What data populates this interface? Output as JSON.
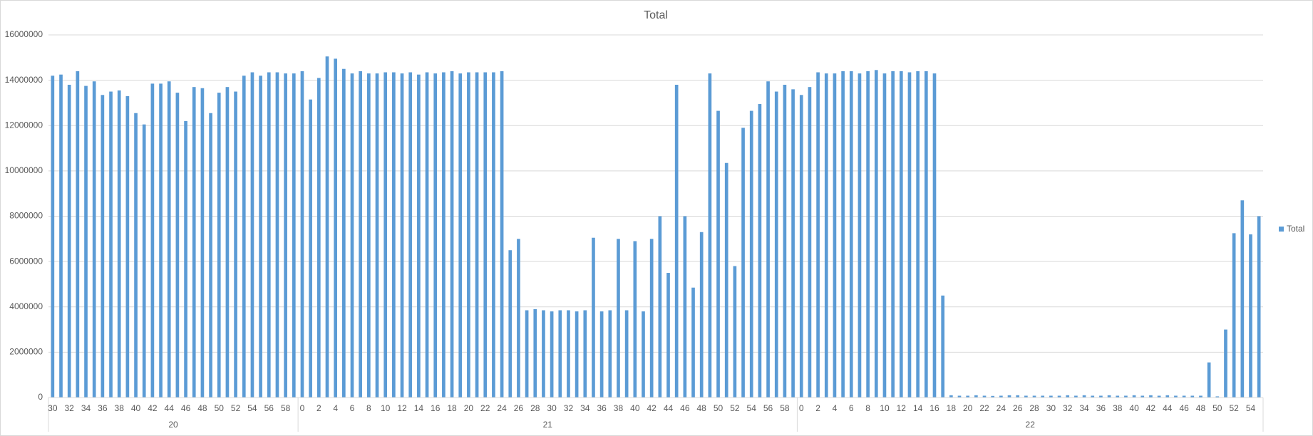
{
  "chart_data": {
    "type": "bar",
    "title": "Total",
    "category_groups": [
      {
        "label": "20",
        "categories": [
          "30",
          null,
          "32",
          null,
          "34",
          null,
          "36",
          null,
          "38",
          null,
          "40",
          null,
          "42",
          null,
          "44",
          null,
          "46",
          null,
          "48",
          null,
          "50",
          null,
          "52",
          null,
          "54",
          null,
          "56",
          null,
          "58",
          null
        ]
      },
      {
        "label": "21",
        "categories": [
          "0",
          null,
          "2",
          null,
          "4",
          null,
          "6",
          null,
          "8",
          null,
          "10",
          null,
          "12",
          null,
          "14",
          null,
          "16",
          null,
          "18",
          null,
          "20",
          null,
          "22",
          null,
          "24",
          null,
          "26",
          null,
          "28",
          null,
          "30",
          null,
          "32",
          null,
          "34",
          null,
          "36",
          null,
          "38",
          null,
          "40",
          null,
          "42",
          null,
          "44",
          null,
          "46",
          null,
          "48",
          null,
          "50",
          null,
          "52",
          null,
          "54",
          null,
          "56",
          null,
          "58",
          null
        ]
      },
      {
        "label": "22",
        "categories": [
          "0",
          null,
          "2",
          null,
          "4",
          null,
          "6",
          null,
          "8",
          null,
          "10",
          null,
          "12",
          null,
          "14",
          null,
          "16",
          null,
          "18",
          null,
          "20",
          null,
          "22",
          null,
          "24",
          null,
          "26",
          null,
          "28",
          null,
          "30",
          null,
          "32",
          null,
          "34",
          null,
          "36",
          null,
          "38",
          null,
          "40",
          null,
          "42",
          null,
          "44",
          null,
          "46",
          null,
          "48",
          null,
          "50",
          null,
          "52",
          null,
          "54",
          null
        ]
      }
    ],
    "series": [
      {
        "name": "Total",
        "color": "#5b9bd5",
        "values": [
          14200000,
          14250000,
          13800000,
          14400000,
          13750000,
          13950000,
          13350000,
          13500000,
          13550000,
          13300000,
          12550000,
          12050000,
          13850000,
          13850000,
          13950000,
          13450000,
          12200000,
          13700000,
          13650000,
          12550000,
          13450000,
          13700000,
          13500000,
          14200000,
          14350000,
          14200000,
          14350000,
          14350000,
          14300000,
          14300000,
          14400000,
          13150000,
          14100000,
          15050000,
          14950000,
          14500000,
          14300000,
          14400000,
          14300000,
          14300000,
          14350000,
          14350000,
          14300000,
          14350000,
          14250000,
          14350000,
          14300000,
          14350000,
          14400000,
          14300000,
          14350000,
          14350000,
          14350000,
          14350000,
          14400000,
          6500000,
          7000000,
          3850000,
          3900000,
          3850000,
          3800000,
          3850000,
          3850000,
          3800000,
          3850000,
          7050000,
          3800000,
          3850000,
          7000000,
          3850000,
          6900000,
          3800000,
          7000000,
          8000000,
          5500000,
          13800000,
          8000000,
          4850000,
          7300000,
          14300000,
          12650000,
          10350000,
          5800000,
          11900000,
          12650000,
          12950000,
          13950000,
          13500000,
          13800000,
          13600000,
          13350000,
          13700000,
          14350000,
          14300000,
          14300000,
          14400000,
          14400000,
          14300000,
          14400000,
          14450000,
          14300000,
          14400000,
          14400000,
          14350000,
          14400000,
          14400000,
          14300000,
          4500000,
          100000,
          80000,
          80000,
          100000,
          80000,
          70000,
          80000,
          100000,
          100000,
          80000,
          80000,
          80000,
          80000,
          80000,
          100000,
          80000,
          100000,
          80000,
          80000,
          100000,
          80000,
          80000,
          100000,
          80000,
          100000,
          80000,
          100000,
          80000,
          80000,
          80000,
          80000,
          1550000,
          50000,
          3000000,
          7250000,
          8700000,
          7200000,
          8000000
        ]
      }
    ],
    "ylim": [
      0,
      16000000
    ],
    "yticks": [
      0,
      2000000,
      4000000,
      6000000,
      8000000,
      10000000,
      12000000,
      14000000,
      16000000
    ],
    "grid": true,
    "legend": "right"
  }
}
